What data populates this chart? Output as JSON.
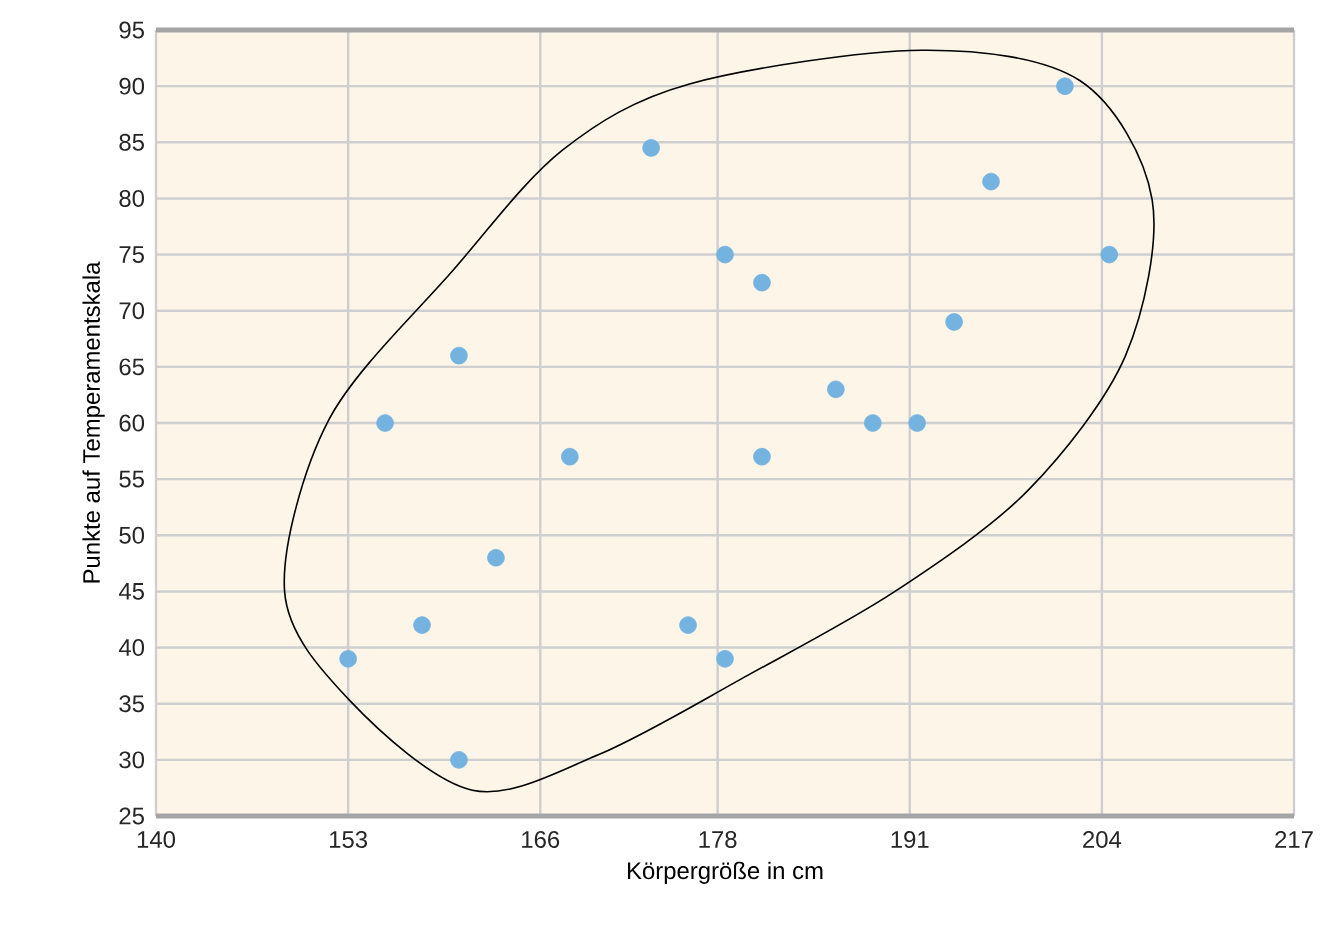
{
  "chart_data": {
    "type": "scatter",
    "xlabel": "Körpergröße in cm",
    "ylabel": "Punkte auf Temperamentskala",
    "x": [
      153,
      155.5,
      158,
      160.5,
      160.5,
      163,
      168,
      173.5,
      176,
      178.5,
      178.5,
      181,
      181,
      186,
      188.5,
      191.5,
      194,
      196.5,
      201.5,
      204.5
    ],
    "values": [
      39,
      60,
      42,
      66,
      30,
      48,
      57,
      84.5,
      42,
      39,
      75,
      72.5,
      57,
      63,
      60,
      60,
      69,
      81.5,
      90,
      75
    ],
    "color": "#74b3e0",
    "xlim": [
      140,
      217
    ],
    "xticks": [
      140,
      153,
      166,
      178,
      191,
      204,
      217
    ],
    "ylim": [
      25,
      95
    ],
    "yticks": [
      25,
      30,
      35,
      40,
      45,
      50,
      55,
      60,
      65,
      70,
      75,
      80,
      85,
      90,
      95
    ],
    "grid": true
  }
}
